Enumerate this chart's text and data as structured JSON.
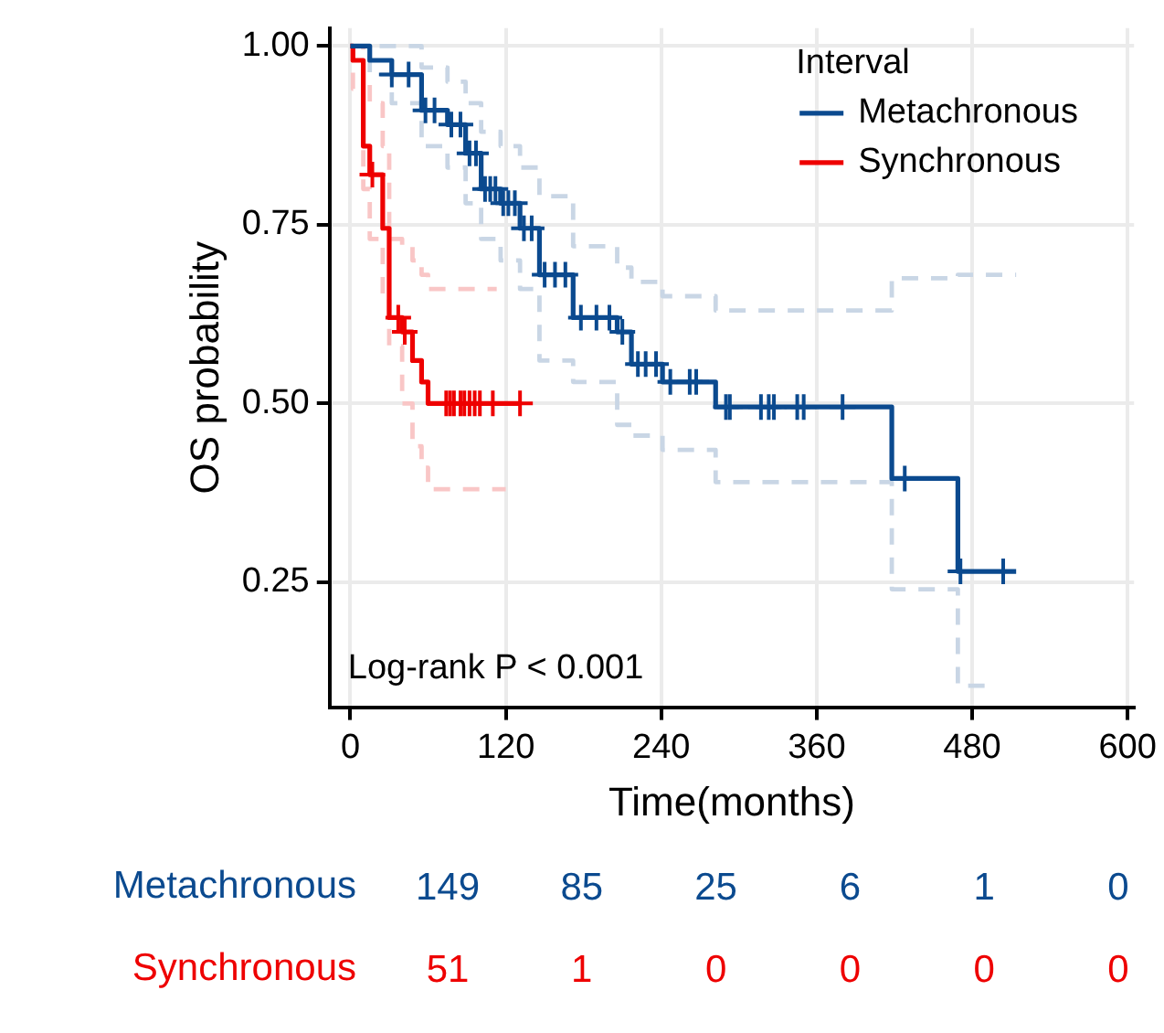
{
  "chart_data": [
    {
      "type": "step",
      "xlabel": "Time(months)",
      "ylabel": "OS probability",
      "legend_title": "Interval",
      "legend": "top right",
      "grid": true,
      "xlim": [
        -16,
        605
      ],
      "xticks": [
        0,
        120,
        240,
        360,
        480,
        600
      ],
      "ylim": [
        0.075,
        1.025
      ],
      "yticks": [
        {
          "value": 0.25,
          "label": "0.25"
        },
        {
          "value": 0.5,
          "label": "0.50"
        },
        {
          "value": 0.75,
          "label": "0.75"
        },
        {
          "value": 1,
          "label": "1.00"
        }
      ],
      "annotations": [
        "Log-rank P < 0.001"
      ],
      "series": [
        {
          "name": "Metachronous",
          "color": "#0b4a8f",
          "x": [
            0,
            15,
            32,
            55,
            75,
            89,
            101,
            116,
            131,
            146,
            172,
            206,
            217,
            241,
            282,
            418,
            469,
            514
          ],
          "values": [
            1,
            0.98,
            0.96,
            0.91,
            0.89,
            0.85,
            0.8,
            0.78,
            0.745,
            0.68,
            0.62,
            0.6,
            0.555,
            0.53,
            0.495,
            0.395,
            0.265,
            0.265
          ]
        },
        {
          "name": "Synchronous",
          "color": "#ee0000",
          "x": [
            0,
            2,
            10,
            15,
            25,
            30,
            40,
            48,
            55,
            60,
            131
          ],
          "values": [
            1,
            0.98,
            0.86,
            0.82,
            0.745,
            0.62,
            0.6,
            0.56,
            0.53,
            0.5,
            0.5
          ]
        },
        {
          "line_style": "dashed",
          "color": "#c9d6e5",
          "x": [
            0,
            15,
            32,
            55,
            75,
            89,
            101,
            116,
            131,
            146,
            172,
            206,
            217,
            241,
            282,
            418,
            469,
            494
          ],
          "values": [
            1,
            0.96,
            0.92,
            0.86,
            0.83,
            0.78,
            0.73,
            0.7,
            0.66,
            0.56,
            0.53,
            0.47,
            0.455,
            0.435,
            0.39,
            0.24,
            0.105,
            0.105
          ]
        },
        {
          "line_style": "dashed",
          "color": "#c9d6e5",
          "x": [
            0,
            15,
            32,
            55,
            75,
            89,
            101,
            116,
            131,
            146,
            172,
            206,
            217,
            241,
            282,
            418,
            469,
            514
          ],
          "values": [
            1,
            1,
            1,
            0.97,
            0.95,
            0.92,
            0.88,
            0.86,
            0.83,
            0.79,
            0.72,
            0.69,
            0.67,
            0.65,
            0.63,
            0.675,
            0.68,
            0.68
          ]
        },
        {
          "line_style": "dashed",
          "color": "#f9c6c6",
          "x": [
            0,
            2,
            10,
            15,
            25,
            30,
            40,
            48,
            55,
            60,
            120
          ],
          "values": [
            1,
            0.94,
            0.8,
            0.73,
            0.65,
            0.58,
            0.5,
            0.44,
            0.41,
            0.38,
            0.38
          ]
        },
        {
          "line_style": "dashed",
          "color": "#f9c6c6",
          "x": [
            0,
            2,
            10,
            15,
            25,
            30,
            40,
            48,
            55,
            60,
            113
          ],
          "values": [
            1,
            1,
            0.95,
            0.92,
            0.86,
            0.73,
            0.72,
            0.7,
            0.68,
            0.66,
            0.66
          ]
        },
        {
          "type": "scatter",
          "marker": "cross",
          "color": "#0b4a8f",
          "x": [
            32,
            45,
            58,
            65,
            78,
            85,
            92,
            97,
            104,
            108,
            112,
            118,
            122,
            127,
            134,
            140,
            150,
            158,
            166,
            178,
            190,
            200,
            210,
            222,
            228,
            236,
            247,
            262,
            267,
            290,
            293,
            317,
            323,
            327,
            345,
            350,
            380,
            428,
            471,
            504
          ],
          "values": [
            0.96,
            0.96,
            0.91,
            0.91,
            0.89,
            0.89,
            0.85,
            0.85,
            0.8,
            0.8,
            0.8,
            0.78,
            0.78,
            0.78,
            0.745,
            0.745,
            0.68,
            0.68,
            0.68,
            0.62,
            0.62,
            0.62,
            0.6,
            0.555,
            0.555,
            0.555,
            0.53,
            0.53,
            0.53,
            0.495,
            0.495,
            0.495,
            0.495,
            0.495,
            0.495,
            0.495,
            0.495,
            0.395,
            0.265,
            0.265
          ]
        },
        {
          "type": "scatter",
          "marker": "cross",
          "color": "#ee0000",
          "x": [
            17,
            37,
            42,
            74,
            77,
            80,
            85,
            88,
            92,
            96,
            100,
            110,
            131
          ],
          "values": [
            0.82,
            0.62,
            0.6,
            0.5,
            0.5,
            0.5,
            0.5,
            0.5,
            0.5,
            0.5,
            0.5,
            0.5,
            0.5
          ]
        }
      ]
    },
    {
      "type": "heatmap",
      "data_labels": true,
      "categories": [
        null,
        null,
        null,
        null,
        null,
        null
      ],
      "y_categories": [
        "Metachronous",
        "Synchronous"
      ],
      "colors": [
        "#0b4a8f",
        "#ee0000"
      ],
      "cells": [
        [
          149,
          85,
          25,
          6,
          1,
          0
        ],
        [
          51,
          1,
          0,
          0,
          0,
          0
        ]
      ]
    }
  ]
}
